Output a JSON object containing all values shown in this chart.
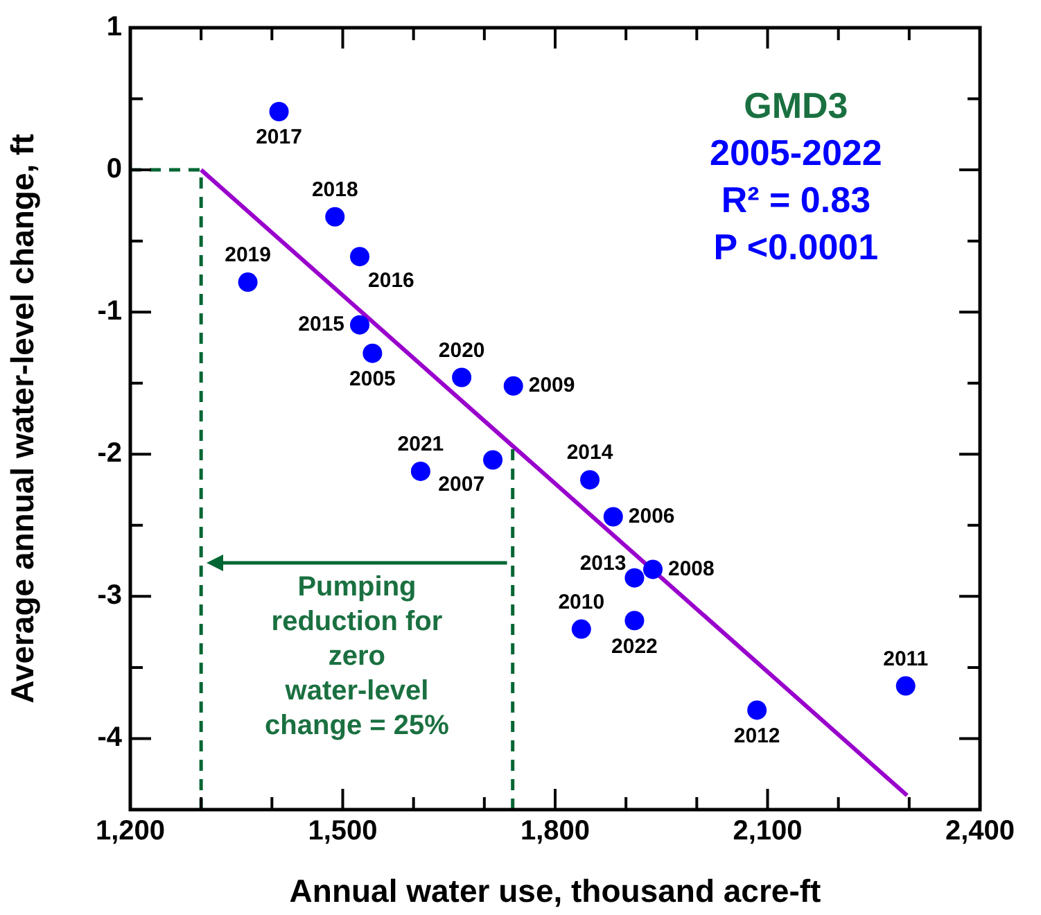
{
  "chart_data": {
    "type": "scatter",
    "xlabel": "Annual water use, thousand acre-ft",
    "ylabel": "Average annual water-level change, ft",
    "annotations": [
      "GMD3",
      "2005-2022",
      "R² = 0.83",
      "P <0.0001",
      "Pumping reduction for zero water-level change = 25%",
      {
        "text": "2005",
        "x": 1542,
        "y": -1.29
      },
      {
        "text": "2006",
        "x": 1882,
        "y": -2.44
      },
      {
        "text": "2007",
        "x": 1712,
        "y": -2.04
      },
      {
        "text": "2008",
        "x": 1938,
        "y": -2.81
      },
      {
        "text": "2009",
        "x": 1741,
        "y": -1.52
      },
      {
        "text": "2010",
        "x": 1837,
        "y": -3.23
      },
      {
        "text": "2011",
        "x": 2295,
        "y": -3.63
      },
      {
        "text": "2012",
        "x": 2085,
        "y": -3.8
      },
      {
        "text": "2013",
        "x": 1912,
        "y": -2.87
      },
      {
        "text": "2014",
        "x": 1849,
        "y": -2.18
      },
      {
        "text": "2015",
        "x": 1524,
        "y": -1.09
      },
      {
        "text": "2016",
        "x": 1524,
        "y": -0.61
      },
      {
        "text": "2017",
        "x": 1410,
        "y": 0.41
      },
      {
        "text": "2018",
        "x": 1489,
        "y": -0.33
      },
      {
        "text": "2019",
        "x": 1366,
        "y": -0.79
      },
      {
        "text": "2020",
        "x": 1668,
        "y": -1.46
      },
      {
        "text": "2021",
        "x": 1610,
        "y": -2.12
      },
      {
        "text": "2022",
        "x": 1912,
        "y": -3.17
      }
    ],
    "xlim": [
      1200,
      2400
    ],
    "xticks": [
      {
        "value": 1200,
        "label": "1,200"
      },
      {
        "value": 1300,
        "label": null
      },
      {
        "value": 1400,
        "label": null
      },
      {
        "value": 1500,
        "label": "1,500"
      },
      {
        "value": 1600,
        "label": null
      },
      {
        "value": 1700,
        "label": null
      },
      {
        "value": 1800,
        "label": "1,800"
      },
      {
        "value": 1900,
        "label": null
      },
      {
        "value": 2000,
        "label": null
      },
      {
        "value": 2100,
        "label": "2,100"
      },
      {
        "value": 2200,
        "label": null
      },
      {
        "value": 2300,
        "label": null
      },
      {
        "value": 2400,
        "label": "2,400"
      }
    ],
    "ylim": [
      -4.5,
      1
    ],
    "yticks": [
      {
        "value": -4.5,
        "label": null
      },
      -4,
      {
        "value": -3.5,
        "label": null
      },
      -3,
      {
        "value": -2.5,
        "label": null
      },
      -2,
      {
        "value": -1.5,
        "label": null
      },
      -1,
      {
        "value": -0.5,
        "label": null
      },
      0,
      {
        "value": 0.5,
        "label": null
      },
      1
    ],
    "legend": false,
    "grid": false,
    "ref_lines": [
      {
        "axis": "x",
        "value": 1300,
        "color": "#006633",
        "line_style": "dashed"
      },
      {
        "axis": "x",
        "value": 1740,
        "color": "#006633",
        "line_style": "dashed"
      },
      {
        "axis": "y",
        "value": 0,
        "color": "#006633",
        "line_style": "dashed"
      }
    ],
    "series": [
      {
        "color": "#0000ff",
        "marker": "circle",
        "x": [
          1542,
          1882,
          1712,
          1938,
          1741,
          1837,
          2295,
          2085,
          1912,
          1849,
          1524,
          1524,
          1410,
          1489,
          1366,
          1668,
          1610,
          1912
        ],
        "values": [
          -1.29,
          -2.44,
          -2.04,
          -2.81,
          -1.52,
          -3.23,
          -3.63,
          -3.8,
          -2.87,
          -2.18,
          -1.09,
          -0.61,
          0.41,
          -0.33,
          -0.79,
          -1.46,
          -2.12,
          -3.17
        ]
      },
      {
        "type": "line",
        "color": "#9900cc",
        "marker": "none",
        "x": [
          1300,
          2297
        ],
        "values": [
          0,
          -4.4
        ]
      }
    ]
  }
}
